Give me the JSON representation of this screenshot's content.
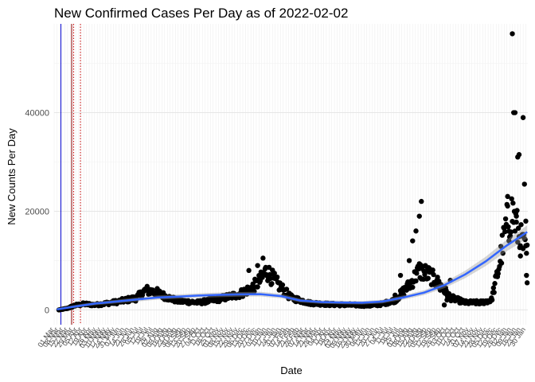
{
  "chart_data": {
    "type": "scatter",
    "title": "New Confirmed Cases Per Day as of 2022-02-02",
    "xlabel": "Date",
    "ylabel": "New Counts Per Day",
    "xlim": [
      "2020-03-01",
      "2022-02-02"
    ],
    "ylim": [
      -3000,
      58000
    ],
    "yticks": [
      0,
      20000,
      40000
    ],
    "ytick_labels": [
      "0",
      "20000",
      "40000"
    ],
    "grid": true,
    "legend": "none",
    "vlines": [
      {
        "date": "2020-03-11",
        "color": "#0000cc",
        "style": "solid"
      },
      {
        "date": "2020-03-27",
        "color": "#8b0000",
        "style": "solid"
      },
      {
        "date": "2020-03-30",
        "color": "#cc0000",
        "style": "dotted"
      },
      {
        "date": "2020-04-09",
        "color": "#cc0000",
        "style": "dotted"
      }
    ],
    "trend_color": "#3366ff",
    "point_color": "#000000",
    "anchors": [
      [
        "2020-03-08",
        0
      ],
      [
        "2020-03-20",
        300
      ],
      [
        "2020-04-01",
        900
      ],
      [
        "2020-04-15",
        1200
      ],
      [
        "2020-05-01",
        1000
      ],
      [
        "2020-06-01",
        1600
      ],
      [
        "2020-07-01",
        2400
      ],
      [
        "2020-07-15",
        4000
      ],
      [
        "2020-08-01",
        3500
      ],
      [
        "2020-08-15",
        2600
      ],
      [
        "2020-09-01",
        1800
      ],
      [
        "2020-10-01",
        1500
      ],
      [
        "2020-11-01",
        2200
      ],
      [
        "2020-12-01",
        3200
      ],
      [
        "2020-12-20",
        4500
      ],
      [
        "2021-01-01",
        6000
      ],
      [
        "2021-01-10",
        8000
      ],
      [
        "2021-01-25",
        5500
      ],
      [
        "2021-02-15",
        2500
      ],
      [
        "2021-03-15",
        1400
      ],
      [
        "2021-04-15",
        1100
      ],
      [
        "2021-05-15",
        1000
      ],
      [
        "2021-06-15",
        900
      ],
      [
        "2021-07-01",
        1200
      ],
      [
        "2021-07-20",
        2000
      ],
      [
        "2021-08-10",
        5000
      ],
      [
        "2021-08-25",
        8000
      ],
      [
        "2021-09-10",
        7000
      ],
      [
        "2021-09-25",
        5000
      ],
      [
        "2021-10-10",
        2500
      ],
      [
        "2021-11-01",
        1500
      ],
      [
        "2021-11-25",
        1500
      ],
      [
        "2021-12-10",
        2000
      ],
      [
        "2021-12-20",
        8000
      ],
      [
        "2022-01-01",
        17000
      ],
      [
        "2022-01-10",
        20000
      ],
      [
        "2022-01-20",
        15000
      ],
      [
        "2022-02-01",
        11000
      ]
    ],
    "extra_points": [
      [
        "2021-08-15",
        14000
      ],
      [
        "2021-08-20",
        16000
      ],
      [
        "2021-08-25",
        19000
      ],
      [
        "2021-08-28",
        22000
      ],
      [
        "2021-09-03",
        9000
      ],
      [
        "2021-08-10",
        10000
      ],
      [
        "2021-09-20",
        6000
      ],
      [
        "2021-09-25",
        4000
      ],
      [
        "2021-10-01",
        1000
      ],
      [
        "2021-10-05",
        2000
      ],
      [
        "2021-10-10",
        6000
      ],
      [
        "2021-07-20",
        3000
      ],
      [
        "2021-07-28",
        7000
      ],
      [
        "2022-01-03",
        23000
      ],
      [
        "2022-01-05",
        14000
      ],
      [
        "2022-01-10",
        56000
      ],
      [
        "2022-01-12",
        40000
      ],
      [
        "2022-01-14",
        40000
      ],
      [
        "2022-01-16",
        19000
      ],
      [
        "2022-01-18",
        31000
      ],
      [
        "2022-01-20",
        31500
      ],
      [
        "2022-01-22",
        13000
      ],
      [
        "2022-01-24",
        15000
      ],
      [
        "2022-01-26",
        39000
      ],
      [
        "2022-01-28",
        25500
      ],
      [
        "2022-01-30",
        18000
      ],
      [
        "2022-01-31",
        7000
      ],
      [
        "2022-02-01",
        5500
      ],
      [
        "2020-12-28",
        9000
      ],
      [
        "2021-01-05",
        10500
      ],
      [
        "2020-12-15",
        8000
      ]
    ],
    "trend": [
      [
        "2020-03-05",
        100
      ],
      [
        "2020-04-01",
        700
      ],
      [
        "2020-05-01",
        1300
      ],
      [
        "2020-06-01",
        1700
      ],
      [
        "2020-07-01",
        2100
      ],
      [
        "2020-08-01",
        2500
      ],
      [
        "2020-09-01",
        2700
      ],
      [
        "2020-10-01",
        2900
      ],
      [
        "2020-11-01",
        3050
      ],
      [
        "2020-12-01",
        3150
      ],
      [
        "2021-01-01",
        3200
      ],
      [
        "2021-02-01",
        2800
      ],
      [
        "2021-03-01",
        1900
      ],
      [
        "2021-04-01",
        1600
      ],
      [
        "2021-05-01",
        1500
      ],
      [
        "2021-06-01",
        1450
      ],
      [
        "2021-07-01",
        1700
      ],
      [
        "2021-08-01",
        2500
      ],
      [
        "2021-09-01",
        3500
      ],
      [
        "2021-10-01",
        5000
      ],
      [
        "2021-11-01",
        7200
      ],
      [
        "2021-12-01",
        9800
      ],
      [
        "2022-01-01",
        13000
      ],
      [
        "2022-02-01",
        15800
      ]
    ]
  }
}
